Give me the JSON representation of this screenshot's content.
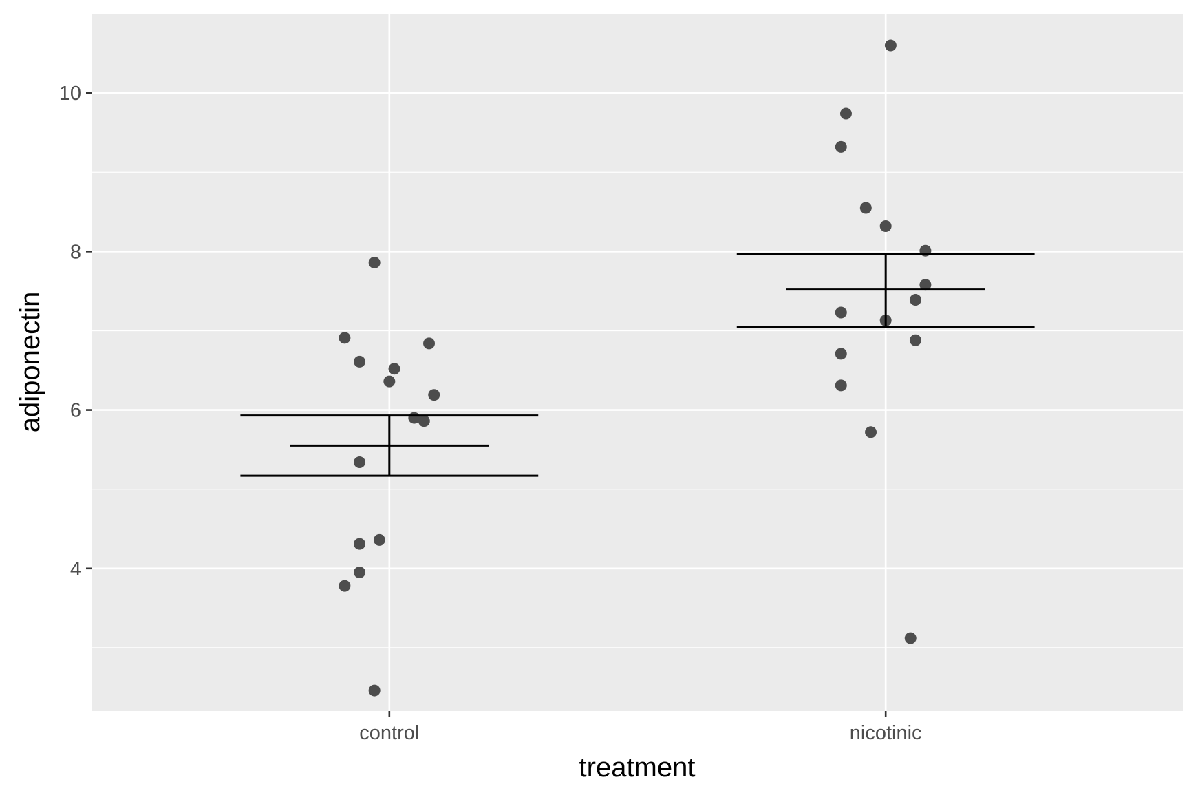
{
  "chart_data": {
    "type": "scatter",
    "title": "",
    "xlabel": "treatment",
    "ylabel": "adiponectin",
    "categories": [
      "control",
      "nicotinic"
    ],
    "ylim": [
      2.2,
      11.0
    ],
    "yticks": [
      4,
      6,
      8,
      10
    ],
    "grid": true,
    "legend": "none",
    "series": [
      {
        "category": "control",
        "points": [
          {
            "jitter": -0.09,
            "y": 6.91
          },
          {
            "jitter": -0.06,
            "y": 6.61
          },
          {
            "jitter": -0.06,
            "y": 5.34
          },
          {
            "jitter": -0.06,
            "y": 4.31
          },
          {
            "jitter": -0.06,
            "y": 3.95
          },
          {
            "jitter": -0.09,
            "y": 3.78
          },
          {
            "jitter": -0.03,
            "y": 2.46
          },
          {
            "jitter": -0.02,
            "y": 4.36
          },
          {
            "jitter": -0.03,
            "y": 7.86
          },
          {
            "jitter": 0.0,
            "y": 6.36
          },
          {
            "jitter": 0.01,
            "y": 6.52
          },
          {
            "jitter": 0.05,
            "y": 5.9
          },
          {
            "jitter": 0.07,
            "y": 5.86
          },
          {
            "jitter": 0.08,
            "y": 6.84
          },
          {
            "jitter": 0.09,
            "y": 6.19
          }
        ],
        "mean": 5.55,
        "se_lower": 5.17,
        "se_upper": 5.93
      },
      {
        "category": "nicotinic",
        "points": [
          {
            "jitter": 0.01,
            "y": 10.6
          },
          {
            "jitter": -0.08,
            "y": 9.74
          },
          {
            "jitter": -0.09,
            "y": 9.32
          },
          {
            "jitter": -0.04,
            "y": 8.55
          },
          {
            "jitter": 0.0,
            "y": 8.32
          },
          {
            "jitter": 0.08,
            "y": 8.01
          },
          {
            "jitter": 0.08,
            "y": 7.58
          },
          {
            "jitter": 0.06,
            "y": 7.39
          },
          {
            "jitter": -0.09,
            "y": 7.23
          },
          {
            "jitter": 0.0,
            "y": 7.13
          },
          {
            "jitter": 0.06,
            "y": 6.88
          },
          {
            "jitter": -0.09,
            "y": 6.71
          },
          {
            "jitter": -0.09,
            "y": 6.31
          },
          {
            "jitter": -0.03,
            "y": 5.72
          },
          {
            "jitter": 0.05,
            "y": 3.12
          }
        ],
        "mean": 7.52,
        "se_lower": 7.05,
        "se_upper": 7.97
      }
    ],
    "colors": {
      "panel": "#ebebeb",
      "grid": "#ffffff",
      "points": "#4d4d4d",
      "error_bars": "#000000",
      "ticks": "#333333"
    }
  }
}
